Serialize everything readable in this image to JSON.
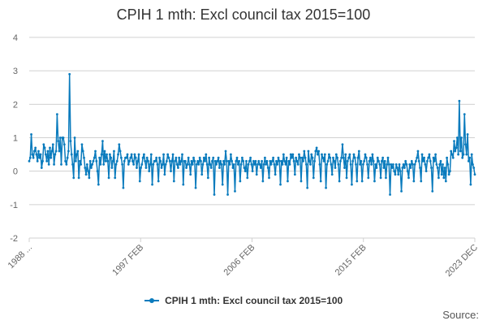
{
  "chart_data": {
    "type": "line",
    "title": "CPIH 1 mth: Excl council tax 2015=100",
    "xlabel": "",
    "ylabel": "",
    "ylim": [
      -2,
      4
    ],
    "yticks": [
      -2,
      -1,
      0,
      1,
      2,
      3,
      4
    ],
    "x_range": [
      "1988 JAN",
      "2023 DEC"
    ],
    "x_tick_labels": [
      "1988 ...",
      "1997 FEB",
      "2006 FEB",
      "2015 FEB",
      "2023 DEC"
    ],
    "grid": true,
    "legend": "bottom",
    "series": [
      {
        "name": "CPIH 1 mth: Excl council tax 2015=100",
        "color": "#0a7bbd",
        "values": [
          0.3,
          0.4,
          1.1,
          0.5,
          0.4,
          0.6,
          0.7,
          0.5,
          0.3,
          0.6,
          0.4,
          0.5,
          0.1,
          0.3,
          0.8,
          0.7,
          0.5,
          0.3,
          0.6,
          0.2,
          0.7,
          0.4,
          0.6,
          0.8,
          0.2,
          0.5,
          0.6,
          1.7,
          0.9,
          0.6,
          1.0,
          0.2,
          1.0,
          1.0,
          0.8,
          0.3,
          0.2,
          0.4,
          0.6,
          2.9,
          0.9,
          0.5,
          0.2,
          -0.2,
          1.0,
          0.3,
          0.5,
          0.6,
          -0.2,
          0.3,
          0.2,
          0.8,
          0.6,
          0.4,
          0.1,
          -0.1,
          0.2,
          0.0,
          -0.2,
          0.3,
          0.1,
          0.2,
          0.3,
          0.4,
          0.6,
          0.3,
          0.0,
          -0.4,
          0.4,
          0.2,
          0.5,
          0.9,
          0.2,
          0.6,
          0.3,
          0.5,
          0.3,
          -0.2,
          0.5,
          0.4,
          0.1,
          0.3,
          0.6,
          -0.2,
          0.2,
          0.3,
          0.5,
          0.8,
          0.6,
          0.4,
          0.2,
          -0.5,
          0.3,
          0.4,
          0.4,
          0.5,
          0.2,
          0.3,
          0.4,
          0.5,
          0.3,
          0.2,
          0.5,
          0.4,
          0.1,
          0.3,
          0.5,
          -0.3,
          0.1,
          0.2,
          0.4,
          0.5,
          0.3,
          0.1,
          0.4,
          0.3,
          0.0,
          0.2,
          0.5,
          -0.4,
          0.2,
          0.3,
          0.3,
          0.4,
          0.2,
          -0.3,
          0.4,
          0.3,
          0.1,
          0.2,
          0.5,
          -0.1,
          0.2,
          0.3,
          0.5,
          0.4,
          0.3,
          0.0,
          0.3,
          0.5,
          -0.3,
          0.3,
          0.4,
          0.2,
          0.1,
          0.4,
          0.2,
          0.3,
          0.5,
          -0.4,
          0.3,
          0.3,
          0.1,
          0.2,
          0.4,
          0.2,
          -0.1,
          0.3,
          0.2,
          0.4,
          0.3,
          -0.5,
          0.2,
          0.3,
          0.2,
          0.4,
          0.3,
          -0.1,
          0.2,
          0.4,
          0.3,
          0.5,
          0.2,
          -0.2,
          0.4,
          0.2,
          0.1,
          0.3,
          0.4,
          -0.7,
          0.3,
          0.2,
          0.3,
          0.4,
          0.1,
          0.3,
          0.2,
          -0.4,
          0.3,
          0.2,
          0.6,
          0.3,
          -0.7,
          0.3,
          0.2,
          0.5,
          0.3,
          0.1,
          0.2,
          -0.6,
          0.3,
          0.4,
          0.2,
          0.3,
          -0.3,
          0.2,
          0.4,
          0.3,
          0.1,
          0.0,
          0.3,
          -0.2,
          0.2,
          0.3,
          0.4,
          0.2,
          0.0,
          0.3,
          0.2,
          0.3,
          -0.1,
          0.2,
          0.3,
          0.2,
          0.1,
          0.3,
          -0.3,
          0.2,
          0.4,
          0.2,
          0.3,
          0.1,
          -0.2,
          0.3,
          0.2,
          0.3,
          0.4,
          0.2,
          -0.1,
          0.3,
          0.2,
          0.4,
          0.3,
          -0.4,
          0.3,
          0.2,
          0.5,
          0.3,
          0.2,
          0.4,
          -0.3,
          0.3,
          0.2,
          0.5,
          0.4,
          0.5,
          0.3,
          -0.1,
          0.4,
          0.3,
          0.2,
          0.5,
          0.4,
          -0.3,
          0.4,
          0.3,
          0.6,
          0.4,
          0.2,
          -0.5,
          0.6,
          0.3,
          0.2,
          0.5,
          0.4,
          -0.2,
          0.3,
          0.6,
          0.7,
          0.5,
          0.6,
          0.2,
          -0.3,
          0.5,
          0.4,
          0.3,
          0.5,
          -0.5,
          0.2,
          0.3,
          0.5,
          0.4,
          0.2,
          -0.1,
          0.4,
          0.3,
          0.1,
          0.5,
          0.4,
          0.2,
          -0.3,
          0.3,
          0.4,
          0.8,
          0.4,
          0.1,
          0.5,
          -0.2,
          0.3,
          0.4,
          0.5,
          0.2,
          -0.4,
          0.3,
          0.5,
          0.4,
          0.2,
          -0.3,
          0.4,
          0.6,
          0.2,
          0.3,
          -0.3,
          0.2,
          0.3,
          0.5,
          0.4,
          0.2,
          -0.2,
          0.3,
          0.4,
          0.2,
          0.5,
          0.3,
          -0.3,
          0.2,
          0.1,
          0.4,
          0.3,
          0.2,
          -0.2,
          0.3,
          0.4,
          0.1,
          0.3,
          -0.2,
          0.2,
          0.4,
          0.2,
          -0.7,
          0.2,
          0.1,
          0.2,
          0.0,
          -0.1,
          0.2,
          0.1,
          -0.1,
          0.2,
          0.0,
          -0.6,
          0.1,
          0.2,
          0.1,
          0.3,
          0.2,
          0.0,
          -0.2,
          0.2,
          0.1,
          0.3,
          0.2,
          -0.3,
          0.2,
          0.3,
          0.4,
          0.6,
          0.3,
          0.1,
          -0.3,
          0.5,
          0.3,
          0.4,
          0.2,
          0.0,
          0.3,
          0.4,
          0.5,
          0.3,
          0.1,
          -0.6,
          0.4,
          0.3,
          0.5,
          0.2,
          0.1,
          -0.2,
          0.2,
          0.3,
          -0.1,
          0.2,
          -0.2,
          0.1,
          -0.3,
          0.4,
          0.2,
          -0.1,
          0.0,
          0.6,
          0.5,
          0.4,
          0.9,
          0.6,
          0.7,
          1.0,
          0.5,
          2.1,
          0.6,
          1.0,
          0.4,
          0.5,
          1.7,
          0.8,
          0.5,
          1.1,
          0.3,
          0.4,
          -0.4,
          0.5,
          0.2,
          0.1,
          -0.1
        ]
      }
    ]
  },
  "legend": {
    "label": "CPIH 1 mth: Excl council tax 2015=100"
  },
  "footer": {
    "source_label": "Source:"
  },
  "colors": {
    "series": "#0a7bbd",
    "grid": "#d0d0d0",
    "axis_text": "#666666"
  }
}
